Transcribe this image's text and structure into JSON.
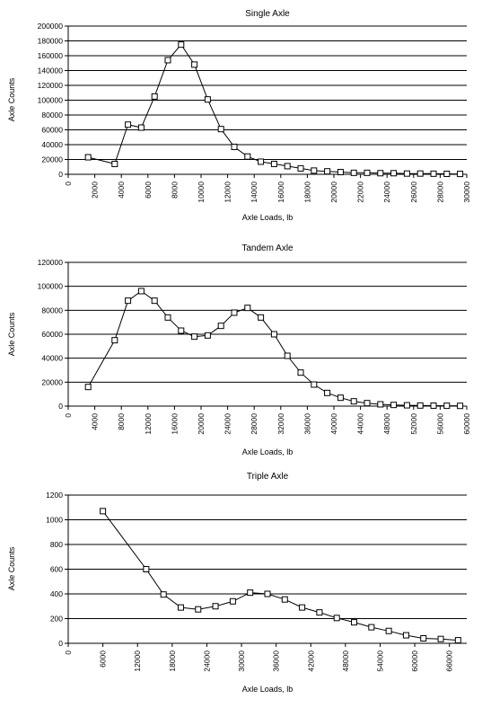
{
  "chart_data": [
    {
      "type": "line",
      "title": "Single Axle",
      "xlabel": "Axle Loads, lb",
      "ylabel": "Axle Counts",
      "xlim": [
        0,
        30000
      ],
      "ylim": [
        0,
        200000
      ],
      "x_ticks": [
        "0",
        "2000",
        "4000",
        "6000",
        "8000",
        "10000",
        "12000",
        "14000",
        "16000",
        "18000",
        "20000",
        "22000",
        "24000",
        "26000",
        "28000",
        "30000"
      ],
      "y_ticks": [
        "0",
        "20000",
        "40000",
        "60000",
        "80000",
        "100000",
        "120000",
        "140000",
        "160000",
        "180000",
        "200000"
      ],
      "grid": true,
      "marker": "open-square",
      "series": [
        {
          "x": [
            1500,
            3500,
            4500,
            5500,
            6500,
            7500,
            8500,
            9500,
            10500,
            11500,
            12500,
            13500,
            14500,
            15500,
            16500,
            17500,
            18500,
            19500,
            20500,
            21500,
            22500,
            23500,
            24500,
            25500,
            26500,
            27500,
            28500,
            29500
          ],
          "y": [
            23000,
            14000,
            67000,
            63000,
            105000,
            154000,
            175000,
            148000,
            101000,
            61000,
            37000,
            24000,
            17000,
            14000,
            11000,
            8000,
            5000,
            4000,
            3000,
            2000,
            2000,
            1500,
            1500,
            1000,
            1000,
            800,
            600,
            500
          ]
        }
      ]
    },
    {
      "type": "line",
      "title": "Tandem Axle",
      "xlabel": "Axle Loads, lb",
      "ylabel": "Axle Counts",
      "xlim": [
        0,
        60000
      ],
      "ylim": [
        0,
        120000
      ],
      "x_ticks": [
        "0",
        "4000",
        "8000",
        "12000",
        "16000",
        "20000",
        "24000",
        "28000",
        "32000",
        "36000",
        "40000",
        "44000",
        "48000",
        "52000",
        "56000",
        "60000"
      ],
      "y_ticks": [
        "0",
        "20000",
        "40000",
        "60000",
        "80000",
        "100000",
        "120000"
      ],
      "grid": true,
      "marker": "open-square",
      "series": [
        {
          "x": [
            3000,
            7000,
            9000,
            11000,
            13000,
            15000,
            17000,
            19000,
            21000,
            23000,
            25000,
            27000,
            29000,
            31000,
            33000,
            35000,
            37000,
            39000,
            41000,
            43000,
            45000,
            47000,
            49000,
            51000,
            53000,
            55000,
            57000,
            59000
          ],
          "y": [
            16000,
            55000,
            88000,
            96000,
            88000,
            74000,
            63000,
            58000,
            59000,
            67000,
            78000,
            82000,
            74000,
            60000,
            42000,
            28000,
            18000,
            11000,
            7000,
            4000,
            2500,
            1500,
            1000,
            700,
            500,
            400,
            300,
            200
          ]
        }
      ]
    },
    {
      "type": "line",
      "title": "Triple Axle",
      "xlabel": "Axle Loads, lb",
      "ylabel": "Axle Counts",
      "xlim": [
        0,
        69000
      ],
      "ylim": [
        0,
        1200
      ],
      "x_ticks": [
        "0",
        "6000",
        "12000",
        "18000",
        "24000",
        "30000",
        "36000",
        "42000",
        "48000",
        "54000",
        "60000",
        "66000"
      ],
      "x_tick_values": [
        0,
        6000,
        12000,
        18000,
        24000,
        30000,
        36000,
        42000,
        48000,
        54000,
        60000,
        66000
      ],
      "y_ticks": [
        "0",
        "200",
        "400",
        "600",
        "800",
        "1000",
        "1200"
      ],
      "grid": true,
      "marker": "open-square",
      "series": [
        {
          "x": [
            6000,
            13500,
            16500,
            19500,
            22500,
            25500,
            28500,
            31500,
            34500,
            37500,
            40500,
            43500,
            46500,
            49500,
            52500,
            55500,
            58500,
            61500,
            64500,
            67500
          ],
          "y": [
            1070,
            600,
            395,
            290,
            275,
            300,
            340,
            410,
            400,
            355,
            290,
            250,
            205,
            170,
            130,
            100,
            65,
            40,
            35,
            25
          ]
        }
      ]
    }
  ]
}
